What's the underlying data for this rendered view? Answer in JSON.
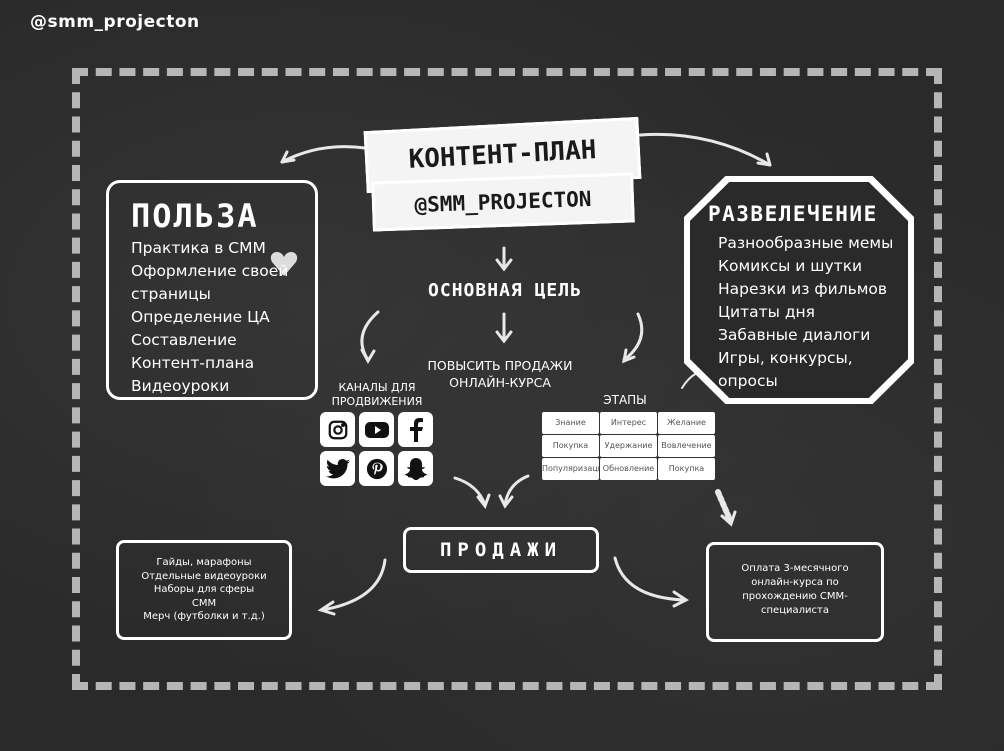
{
  "handle": "@smm_projecton",
  "banner": {
    "title": "КОНТЕНТ-ПЛАН",
    "subtitle": "@SMM_PROJECTON"
  },
  "goal": {
    "title": "ОСНОВНАЯ ЦЕЛЬ",
    "text": "ПОВЫСИТЬ ПРОДАЖИ ОНЛАЙН-КУРСА"
  },
  "benefit": {
    "title": "ПОЛЬЗА",
    "items": [
      "Практика в СММ",
      "Оформление своей",
      "страницы",
      "Определение ЦА",
      "Составление",
      "Контент-плана",
      "Видеоуроки"
    ]
  },
  "entertainment": {
    "title": "РАЗВЕЛЕЧЕНИЕ",
    "items": [
      "Разнообразные мемы",
      "Комиксы и шутки",
      "Нарезки из фильмов",
      "Цитаты дня",
      "Забавные диалоги",
      "Игры, конкурсы,",
      "опросы"
    ]
  },
  "channels": {
    "label": "КАНАЛЫ ДЛЯ ПРОДВИЖЕНИЯ",
    "icons": [
      "instagram-icon",
      "youtube-icon",
      "facebook-icon",
      "twitter-icon",
      "pinterest-icon",
      "snapchat-icon"
    ]
  },
  "stages": {
    "label": "ЭТАПЫ",
    "items": [
      "Знание",
      "Интерес",
      "Желание",
      "Покупка",
      "Удержание",
      "Вовлечение",
      "Популяризация",
      "Обновление",
      "Покупка"
    ]
  },
  "sales": {
    "title": "ПРОДАЖИ"
  },
  "products": {
    "lines": [
      "Гайды, марафоны",
      "Отдельные видеоуроки",
      "Наборы для сферы",
      "СММ",
      "Мерч (футболки и т.д.)"
    ]
  },
  "payment": {
    "lines": [
      "Оплата 3-месячного",
      "онлайн-курса по",
      "прохождению СММ-",
      "специалиста"
    ]
  },
  "colors": {
    "background": "#2a2a2a",
    "chalk": "#ffffff"
  }
}
